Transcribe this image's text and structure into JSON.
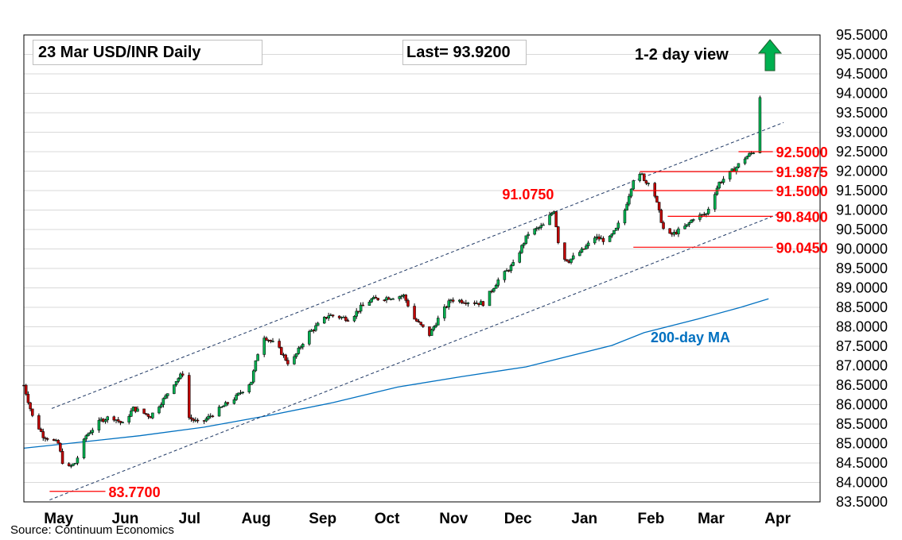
{
  "header": {
    "title": "23 Mar  USD/INR  Daily",
    "last": "Last= 93.9200",
    "view": "1-2 day view",
    "view_icon": "arrow-up-icon",
    "view_color": "#00b050"
  },
  "source": "Source: Continuum Economics",
  "chart_data": {
    "type": "candlestick",
    "pair": "USD/INR",
    "ylim": [
      83.5,
      95.5
    ],
    "y_ticks": [
      "95.5000",
      "95.0000",
      "94.5000",
      "94.0000",
      "93.5000",
      "93.0000",
      "92.5000",
      "92.0000",
      "91.5000",
      "91.0000",
      "90.5000",
      "90.0000",
      "89.5000",
      "89.0000",
      "88.5000",
      "88.0000",
      "87.5000",
      "87.0000",
      "86.5000",
      "86.0000",
      "85.5000",
      "85.0000",
      "84.5000",
      "84.0000",
      "83.5000"
    ],
    "x_labels": [
      "May",
      "Jun",
      "Jul",
      "Aug",
      "Sep",
      "Oct",
      "Nov",
      "Dec",
      "Jan",
      "Feb",
      "Mar",
      "Apr"
    ],
    "x_label_days": [
      0,
      31,
      61,
      92,
      123,
      153,
      184,
      214,
      245,
      276,
      304,
      335
    ],
    "x_range_days": [
      -14,
      357
    ],
    "up_color": "#00b050",
    "down_color": "#c00000",
    "grid": true,
    "levels": [
      {
        "label": "92.5000",
        "value": 92.5,
        "from_day": 319,
        "to_day": 335,
        "color": "#ff0000"
      },
      {
        "label": "91.9875",
        "value": 91.9875,
        "from_day": 273,
        "to_day": 335,
        "color": "#ff0000"
      },
      {
        "label": "91.5000",
        "value": 91.5,
        "from_day": 270,
        "to_day": 335,
        "color": "#ff0000"
      },
      {
        "label": "90.8400",
        "value": 90.84,
        "from_day": 286,
        "to_day": 335,
        "color": "#ff0000"
      },
      {
        "label": "90.0450",
        "value": 90.045,
        "from_day": 270,
        "to_day": 335,
        "color": "#ff0000"
      },
      {
        "label": "83.7700",
        "value": 83.77,
        "from_day": -2,
        "to_day": 24,
        "color": "#ff0000"
      }
    ],
    "annotations": [
      {
        "label": "91.0750",
        "day": 233,
        "value": 91.075,
        "color": "#ff0000"
      }
    ],
    "channel": {
      "upper": [
        [
          -1,
          85.9
        ],
        [
          340,
          93.25
        ]
      ],
      "lower": [
        [
          -2,
          83.55
        ],
        [
          340,
          90.95
        ]
      ]
    },
    "ma200": {
      "name": "200-day MA",
      "color": "#0070c0",
      "points": [
        [
          -14,
          84.88
        ],
        [
          10,
          85.02
        ],
        [
          40,
          85.2
        ],
        [
          70,
          85.42
        ],
        [
          100,
          85.72
        ],
        [
          130,
          86.05
        ],
        [
          160,
          86.45
        ],
        [
          190,
          86.72
        ],
        [
          220,
          86.97
        ],
        [
          260,
          87.52
        ],
        [
          275,
          87.85
        ],
        [
          300,
          88.2
        ],
        [
          320,
          88.5
        ],
        [
          333,
          88.72
        ]
      ]
    },
    "anchors": [
      [
        -14,
        86.5
      ],
      [
        -10,
        85.7
      ],
      [
        -5,
        85.2
      ],
      [
        2,
        85.0
      ],
      [
        5,
        84.3
      ],
      [
        10,
        84.5
      ],
      [
        15,
        85.2
      ],
      [
        22,
        85.6
      ],
      [
        27,
        85.7
      ],
      [
        32,
        85.5
      ],
      [
        37,
        85.9
      ],
      [
        45,
        85.7
      ],
      [
        52,
        86.2
      ],
      [
        55,
        86.5
      ],
      [
        60,
        86.8
      ],
      [
        62,
        85.7
      ],
      [
        68,
        85.5
      ],
      [
        75,
        85.8
      ],
      [
        85,
        86.2
      ],
      [
        92,
        86.6
      ],
      [
        97,
        87.8
      ],
      [
        104,
        87.5
      ],
      [
        110,
        87.0
      ],
      [
        118,
        87.8
      ],
      [
        128,
        88.3
      ],
      [
        138,
        88.2
      ],
      [
        143,
        88.5
      ],
      [
        148,
        88.7
      ],
      [
        163,
        88.8
      ],
      [
        168,
        88.2
      ],
      [
        175,
        87.8
      ],
      [
        180,
        88.3
      ],
      [
        185,
        88.7
      ],
      [
        200,
        88.6
      ],
      [
        207,
        89.2
      ],
      [
        214,
        89.6
      ],
      [
        221,
        90.4
      ],
      [
        228,
        90.6
      ],
      [
        233,
        91.0
      ],
      [
        236,
        89.8
      ],
      [
        240,
        89.7
      ],
      [
        247,
        90.0
      ],
      [
        252,
        90.3
      ],
      [
        258,
        90.2
      ],
      [
        262,
        90.5
      ],
      [
        266,
        91.0
      ],
      [
        270,
        91.8
      ],
      [
        274,
        91.9
      ],
      [
        276,
        91.7
      ],
      [
        278,
        91.8
      ],
      [
        285,
        90.3
      ],
      [
        289,
        90.4
      ],
      [
        295,
        90.6
      ],
      [
        298,
        90.8
      ],
      [
        304,
        90.9
      ],
      [
        306,
        91.2
      ],
      [
        310,
        91.7
      ],
      [
        314,
        91.9
      ],
      [
        318,
        92.1
      ],
      [
        321,
        92.3
      ],
      [
        326,
        92.5
      ],
      [
        327,
        92.6
      ],
      [
        328,
        93.6
      ],
      [
        329,
        93.92
      ]
    ]
  }
}
